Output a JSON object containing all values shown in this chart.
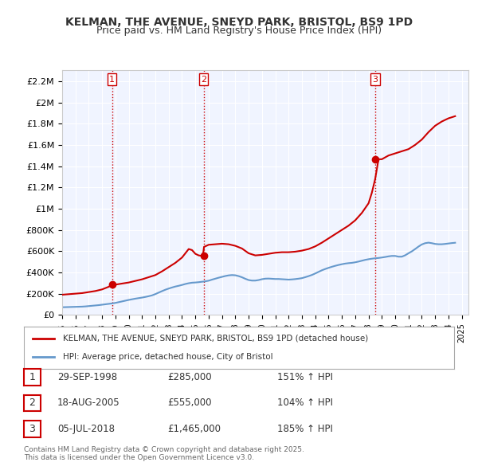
{
  "title": "KELMAN, THE AVENUE, SNEYD PARK, BRISTOL, BS9 1PD",
  "subtitle": "Price paid vs. HM Land Registry's House Price Index (HPI)",
  "bg_color": "#ffffff",
  "plot_bg_color": "#f0f4ff",
  "grid_color": "#ffffff",
  "ylim": [
    0,
    2300000
  ],
  "yticks": [
    0,
    200000,
    400000,
    600000,
    800000,
    1000000,
    1200000,
    1400000,
    1600000,
    1800000,
    2000000,
    2200000
  ],
  "ytick_labels": [
    "£0",
    "£200K",
    "£400K",
    "£600K",
    "£800K",
    "£1M",
    "£1.2M",
    "£1.4M",
    "£1.6M",
    "£1.8M",
    "£2M",
    "£2.2M"
  ],
  "sale_dates": [
    "1998-09-29",
    "2005-08-18",
    "2018-07-05"
  ],
  "sale_prices": [
    285000,
    555000,
    1465000
  ],
  "sale_labels": [
    "1",
    "2",
    "3"
  ],
  "vline_color": "#cc0000",
  "vline_style": ":",
  "red_line_color": "#cc0000",
  "blue_line_color": "#6699cc",
  "legend_label_red": "KELMAN, THE AVENUE, SNEYD PARK, BRISTOL, BS9 1PD (detached house)",
  "legend_label_blue": "HPI: Average price, detached house, City of Bristol",
  "table_rows": [
    [
      "1",
      "29-SEP-1998",
      "£285,000",
      "151% ↑ HPI"
    ],
    [
      "2",
      "18-AUG-2005",
      "£555,000",
      "104% ↑ HPI"
    ],
    [
      "3",
      "05-JUL-2018",
      "£1,465,000",
      "185% ↑ HPI"
    ]
  ],
  "footer": "Contains HM Land Registry data © Crown copyright and database right 2025.\nThis data is licensed under the Open Government Licence v3.0.",
  "hpi_data": {
    "dates": [
      1995.0,
      1995.25,
      1995.5,
      1995.75,
      1996.0,
      1996.25,
      1996.5,
      1996.75,
      1997.0,
      1997.25,
      1997.5,
      1997.75,
      1998.0,
      1998.25,
      1998.5,
      1998.75,
      1999.0,
      1999.25,
      1999.5,
      1999.75,
      2000.0,
      2000.25,
      2000.5,
      2000.75,
      2001.0,
      2001.25,
      2001.5,
      2001.75,
      2002.0,
      2002.25,
      2002.5,
      2002.75,
      2003.0,
      2003.25,
      2003.5,
      2003.75,
      2004.0,
      2004.25,
      2004.5,
      2004.75,
      2005.0,
      2005.25,
      2005.5,
      2005.75,
      2006.0,
      2006.25,
      2006.5,
      2006.75,
      2007.0,
      2007.25,
      2007.5,
      2007.75,
      2008.0,
      2008.25,
      2008.5,
      2008.75,
      2009.0,
      2009.25,
      2009.5,
      2009.75,
      2010.0,
      2010.25,
      2010.5,
      2010.75,
      2011.0,
      2011.25,
      2011.5,
      2011.75,
      2012.0,
      2012.25,
      2012.5,
      2012.75,
      2013.0,
      2013.25,
      2013.5,
      2013.75,
      2014.0,
      2014.25,
      2014.5,
      2014.75,
      2015.0,
      2015.25,
      2015.5,
      2015.75,
      2016.0,
      2016.25,
      2016.5,
      2016.75,
      2017.0,
      2017.25,
      2017.5,
      2017.75,
      2018.0,
      2018.25,
      2018.5,
      2018.75,
      2019.0,
      2019.25,
      2019.5,
      2019.75,
      2020.0,
      2020.25,
      2020.5,
      2020.75,
      2021.0,
      2021.25,
      2021.5,
      2021.75,
      2022.0,
      2022.25,
      2022.5,
      2022.75,
      2023.0,
      2023.25,
      2023.5,
      2023.75,
      2024.0,
      2024.25,
      2024.5
    ],
    "values": [
      72000,
      73000,
      74000,
      75000,
      76000,
      77000,
      78000,
      80000,
      83000,
      86000,
      89000,
      92000,
      96000,
      100000,
      104000,
      108000,
      113000,
      120000,
      127000,
      134000,
      141000,
      147000,
      153000,
      158000,
      163000,
      169000,
      176000,
      184000,
      196000,
      210000,
      224000,
      237000,
      248000,
      258000,
      267000,
      274000,
      282000,
      291000,
      298000,
      303000,
      305000,
      308000,
      312000,
      316000,
      322000,
      332000,
      341000,
      350000,
      358000,
      366000,
      372000,
      375000,
      373000,
      365000,
      354000,
      340000,
      328000,
      323000,
      323000,
      328000,
      336000,
      341000,
      342000,
      340000,
      338000,
      338000,
      336000,
      334000,
      332000,
      334000,
      337000,
      341000,
      346000,
      355000,
      365000,
      376000,
      390000,
      405000,
      420000,
      432000,
      443000,
      453000,
      462000,
      470000,
      477000,
      483000,
      487000,
      490000,
      495000,
      502000,
      510000,
      518000,
      524000,
      529000,
      533000,
      536000,
      540000,
      545000,
      551000,
      555000,
      555000,
      548000,
      548000,
      561000,
      580000,
      598000,
      620000,
      643000,
      663000,
      675000,
      680000,
      675000,
      668000,
      665000,
      665000,
      668000,
      672000,
      676000,
      679000
    ]
  },
  "red_data": {
    "dates": [
      1995.0,
      1995.5,
      1996.0,
      1996.5,
      1997.0,
      1997.5,
      1998.0,
      1998.5,
      1998.75,
      1999.0,
      1999.5,
      2000.0,
      2000.5,
      2001.0,
      2001.5,
      2002.0,
      2002.5,
      2003.0,
      2003.5,
      2004.0,
      2004.25,
      2004.5,
      2004.75,
      2005.0,
      2005.25,
      2005.5,
      2005.6,
      2005.65,
      2006.0,
      2006.5,
      2007.0,
      2007.5,
      2008.0,
      2008.5,
      2009.0,
      2009.5,
      2010.0,
      2010.5,
      2011.0,
      2011.5,
      2012.0,
      2012.5,
      2013.0,
      2013.5,
      2014.0,
      2014.5,
      2015.0,
      2015.5,
      2016.0,
      2016.5,
      2017.0,
      2017.5,
      2018.0,
      2018.25,
      2018.5,
      2018.75,
      2019.0,
      2019.5,
      2020.0,
      2020.5,
      2021.0,
      2021.5,
      2022.0,
      2022.5,
      2023.0,
      2023.5,
      2024.0,
      2024.5
    ],
    "values": [
      190000,
      195000,
      200000,
      205000,
      215000,
      225000,
      240000,
      265000,
      285000,
      285000,
      295000,
      305000,
      320000,
      335000,
      355000,
      375000,
      410000,
      450000,
      490000,
      540000,
      580000,
      620000,
      610000,
      575000,
      560000,
      555000,
      590000,
      640000,
      660000,
      665000,
      670000,
      665000,
      650000,
      625000,
      580000,
      560000,
      565000,
      575000,
      585000,
      590000,
      590000,
      595000,
      605000,
      620000,
      645000,
      680000,
      720000,
      760000,
      800000,
      840000,
      890000,
      960000,
      1050000,
      1150000,
      1280000,
      1465000,
      1465000,
      1500000,
      1520000,
      1540000,
      1560000,
      1600000,
      1650000,
      1720000,
      1780000,
      1820000,
      1850000,
      1870000
    ]
  }
}
